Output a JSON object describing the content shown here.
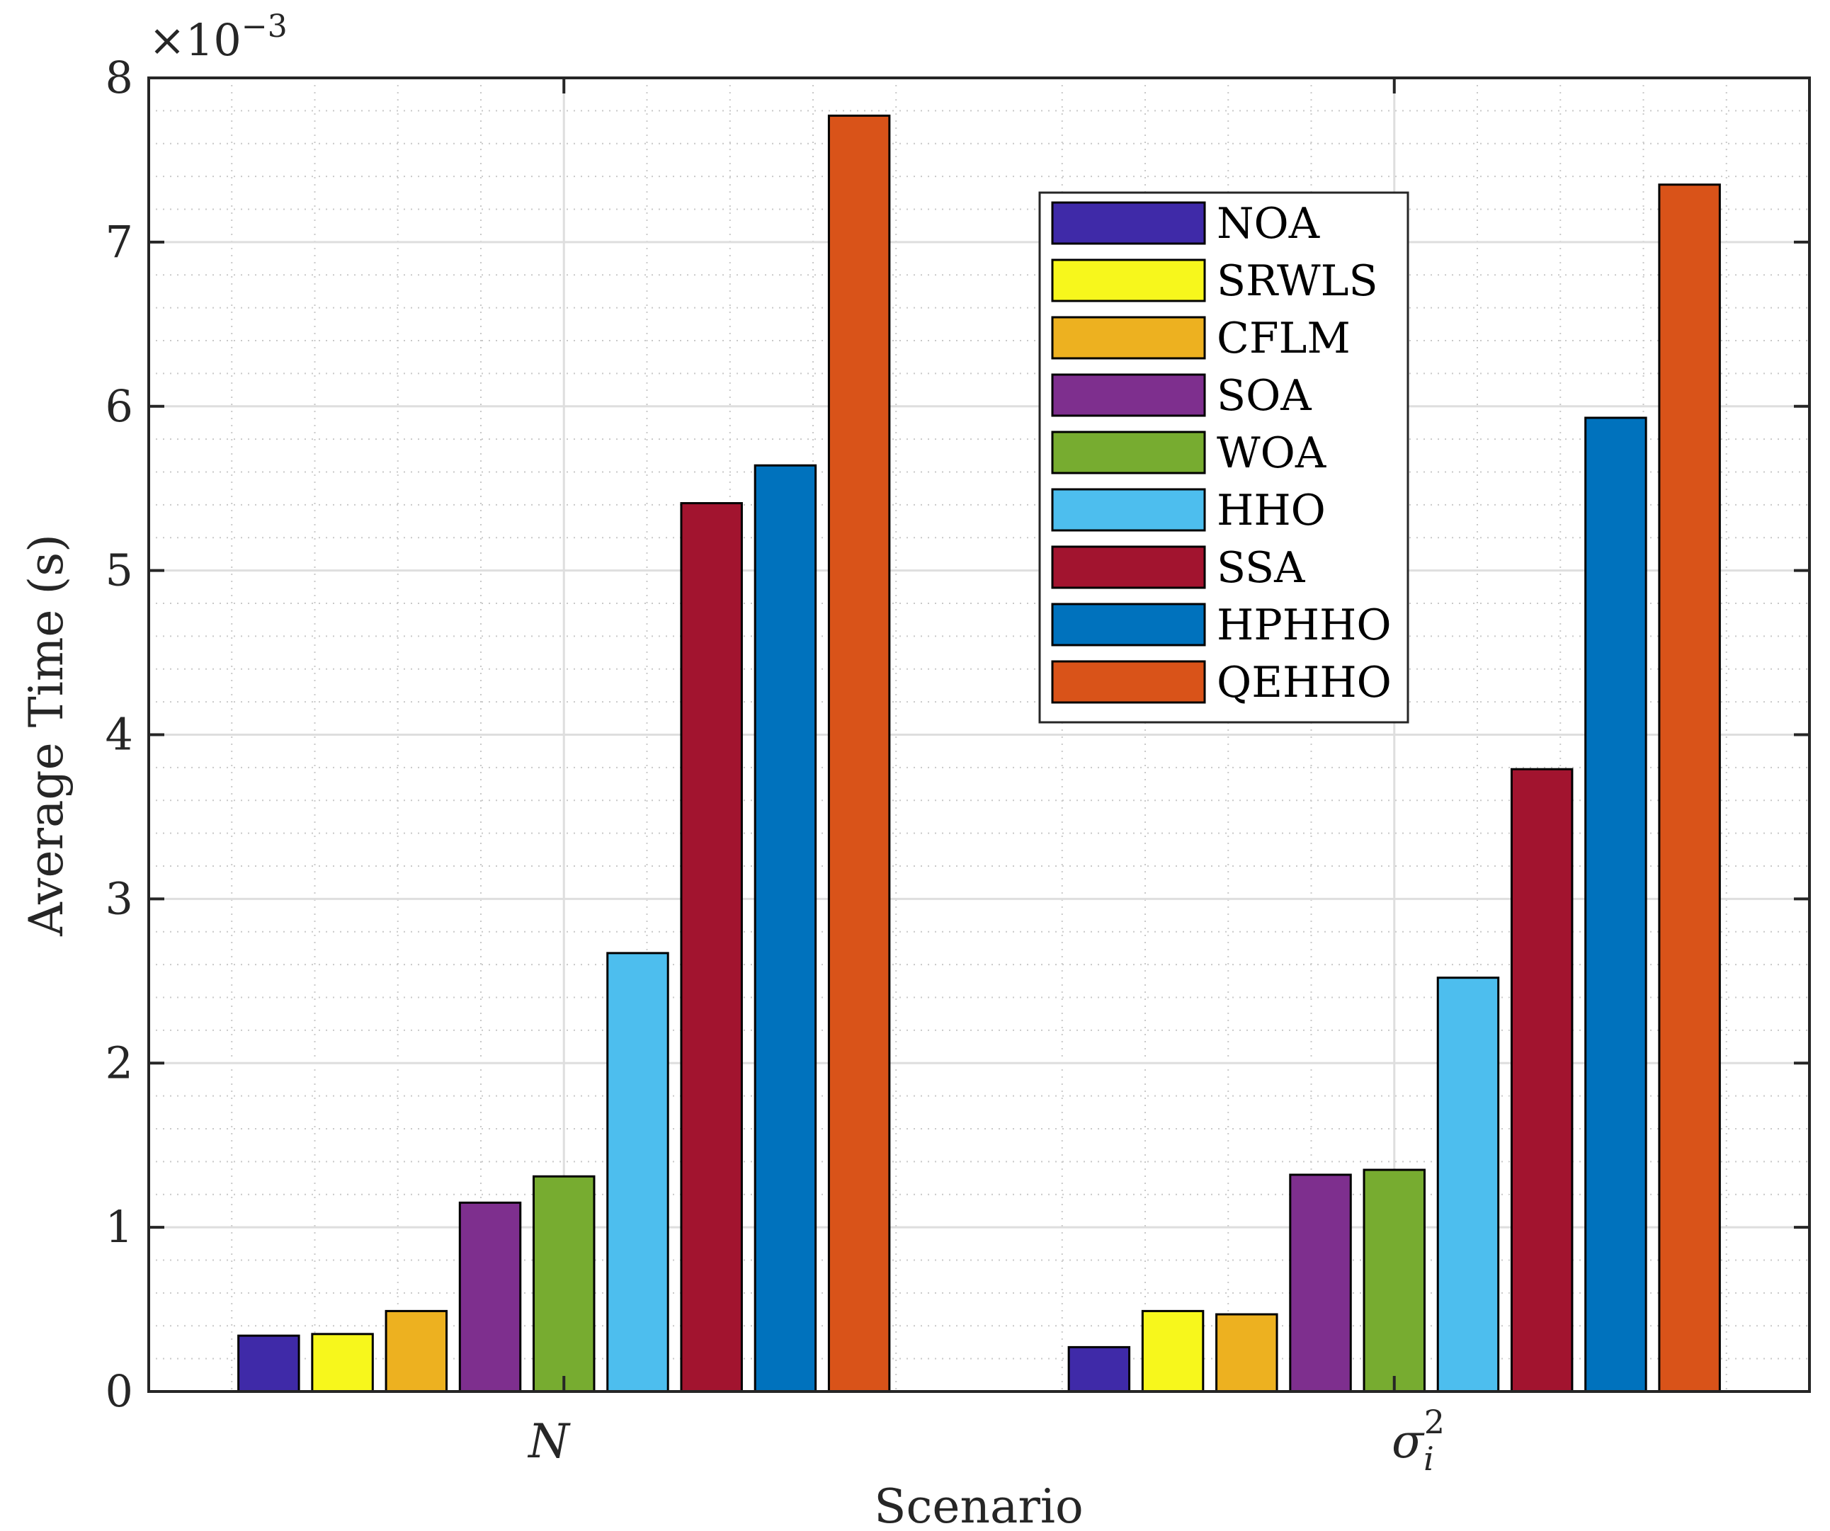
{
  "chart_data": {
    "type": "bar",
    "title": "",
    "xlabel": "Scenario",
    "ylabel": "Average Time (s)",
    "y_exponent_label": "×10",
    "y_exponent_power": "−3",
    "ylim": [
      0,
      8
    ],
    "yticks": [
      0,
      1,
      2,
      3,
      4,
      5,
      6,
      7,
      8
    ],
    "ytick_labels": [
      "0",
      "1",
      "2",
      "3",
      "4",
      "5",
      "6",
      "7",
      "8"
    ],
    "grid": true,
    "legend_position": "top-right",
    "categories": [
      "N",
      "σi2"
    ],
    "category_display": [
      {
        "base": "N",
        "sub": "",
        "sup": ""
      },
      {
        "base": "σ",
        "sub": "i",
        "sup": "2"
      }
    ],
    "series": [
      {
        "name": "NOA",
        "color": "#3f2aa8",
        "values": [
          0.34,
          0.27
        ]
      },
      {
        "name": "SRWLS",
        "color": "#f7f71c",
        "values": [
          0.35,
          0.49
        ]
      },
      {
        "name": "CFLM",
        "color": "#edb120",
        "values": [
          0.49,
          0.47
        ]
      },
      {
        "name": "SOA",
        "color": "#7e2f8e",
        "values": [
          1.15,
          1.32
        ]
      },
      {
        "name": "WOA",
        "color": "#77ac30",
        "values": [
          1.31,
          1.35
        ]
      },
      {
        "name": "HHO",
        "color": "#4dbeee",
        "values": [
          2.67,
          2.52
        ]
      },
      {
        "name": "SSA",
        "color": "#a2142f",
        "values": [
          5.41,
          3.79
        ]
      },
      {
        "name": "HPHHO",
        "color": "#0072bd",
        "values": [
          5.64,
          5.93
        ]
      },
      {
        "name": "QEHHO",
        "color": "#d95319",
        "values": [
          7.77,
          7.35
        ]
      }
    ]
  }
}
